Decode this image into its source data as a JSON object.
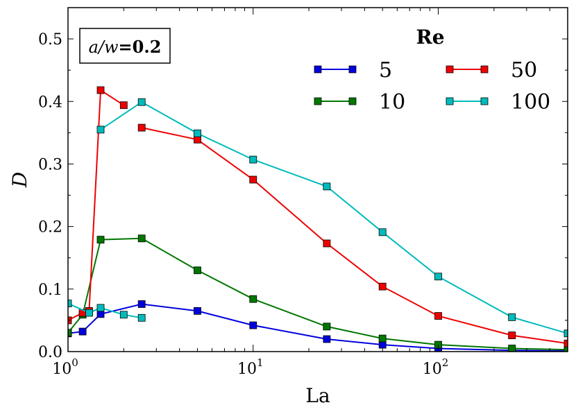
{
  "chart_data": {
    "type": "line",
    "xscale": "log",
    "xlim": [
      1,
      500
    ],
    "ylim": [
      0,
      0.55
    ],
    "xlabel": "La",
    "ylabel": "D",
    "yticks": [
      "0.0",
      "0.1",
      "0.2",
      "0.3",
      "0.4",
      "0.5"
    ],
    "xticks": [
      {
        "base": "10",
        "exp": "0"
      },
      {
        "base": "10",
        "exp": "1"
      },
      {
        "base": "10",
        "exp": "2"
      }
    ],
    "annotation": {
      "italic_part": "a/w",
      "rest": "=0.2"
    },
    "legend": {
      "title": "Re",
      "placement": "top-right",
      "ncol": 2
    },
    "series": [
      {
        "name": "5",
        "color": "#0000dd",
        "x": [
          1,
          1.2,
          1.5,
          2.5,
          5,
          10,
          25,
          50,
          100,
          250,
          500
        ],
        "y": [
          0.029,
          0.032,
          0.06,
          0.076,
          0.065,
          0.042,
          0.02,
          0.011,
          0.005,
          0.002,
          0.001
        ]
      },
      {
        "name": "10",
        "color": "#007700",
        "x": [
          1,
          1.2,
          1.5,
          2.5,
          5,
          10,
          25,
          50,
          100,
          250,
          500
        ],
        "y": [
          0.03,
          0.059,
          0.179,
          0.181,
          0.13,
          0.084,
          0.04,
          0.021,
          0.011,
          0.005,
          0.003
        ]
      },
      {
        "name": "50",
        "color": "#ee0000",
        "x": [
          1,
          1.2,
          1.3,
          1.5,
          2,
          2.5,
          5,
          10,
          25,
          50,
          100,
          250,
          500
        ],
        "y": [
          0.05,
          0.062,
          0.065,
          0.418,
          0.394,
          0.358,
          0.339,
          0.275,
          0.173,
          0.104,
          0.057,
          0.026,
          0.013
        ],
        "breaks_after_index": [
          1,
          4
        ]
      },
      {
        "name": "100",
        "color": "#00bbbb",
        "x": [
          1,
          1.3,
          1.5,
          2,
          2.5,
          1.5,
          2.5,
          5,
          10,
          25,
          50,
          100,
          250,
          500
        ],
        "y": [
          0.077,
          0.062,
          0.07,
          0.059,
          0.054,
          0.355,
          0.399,
          0.349,
          0.307,
          0.264,
          0.191,
          0.12,
          0.055,
          0.029
        ],
        "breaks_after_index": [
          4
        ]
      }
    ]
  }
}
